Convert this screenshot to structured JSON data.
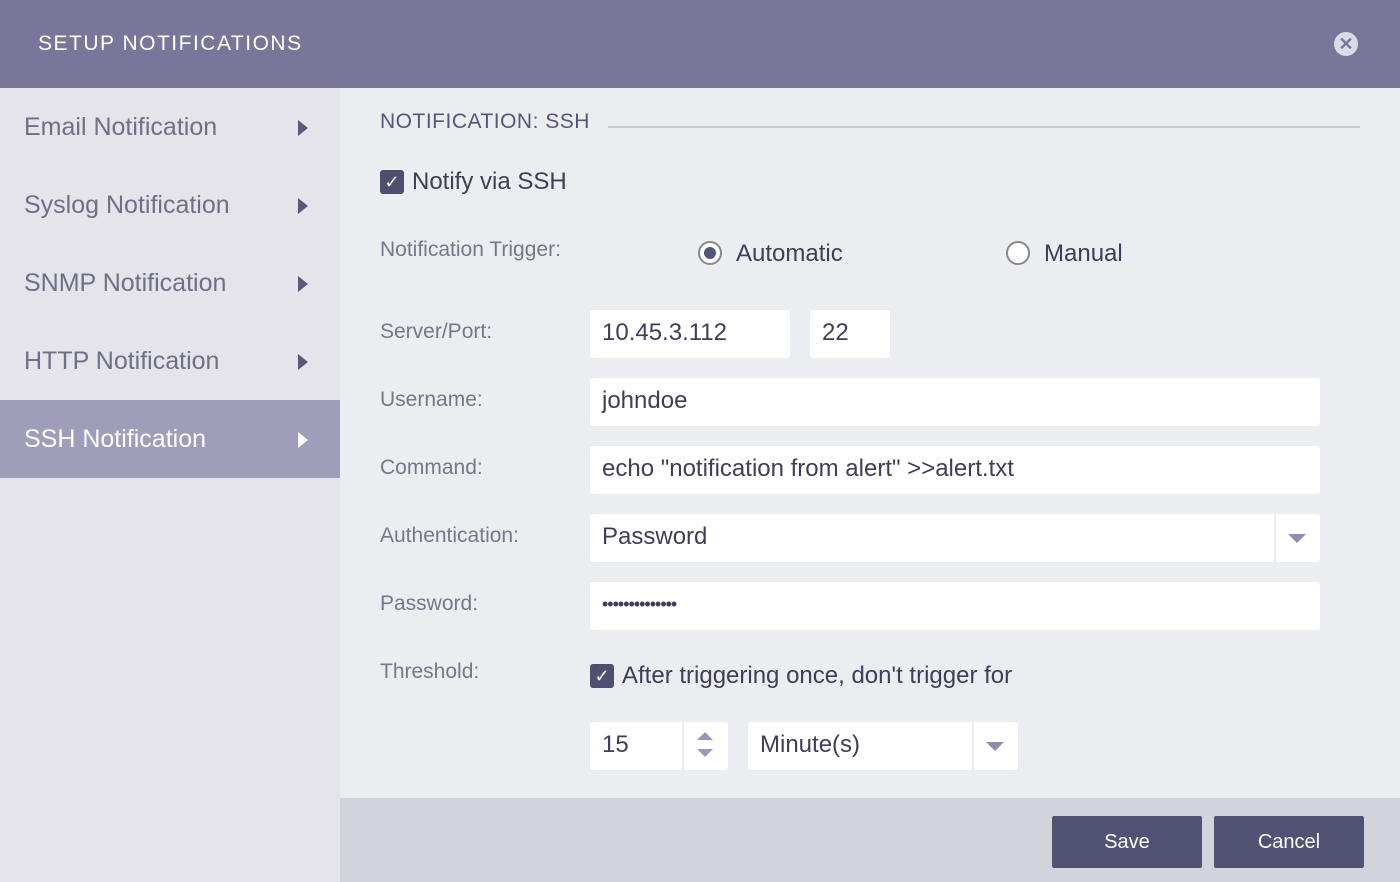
{
  "header": {
    "title": "SETUP NOTIFICATIONS",
    "close_icon": "close-circle-icon"
  },
  "sidebar": {
    "items": [
      {
        "label": "Email Notification"
      },
      {
        "label": "Syslog Notification"
      },
      {
        "label": "SNMP Notification"
      },
      {
        "label": "HTTP Notification"
      },
      {
        "label": "SSH Notification",
        "active": true
      }
    ]
  },
  "main": {
    "section_title": "NOTIFICATION: SSH",
    "notify_label": "Notify via SSH",
    "notify_checked": true,
    "trigger_label": "Notification Trigger:",
    "trigger_options": [
      "Automatic",
      "Manual"
    ],
    "trigger_selected": "Automatic",
    "server_label": "Server/Port:",
    "server": "10.45.3.112",
    "port": "22",
    "username_label": "Username:",
    "username": "johndoe",
    "command_label": "Command:",
    "command": "echo \"notification from alert\" >>alert.txt",
    "auth_label": "Authentication:",
    "auth": "Password",
    "password_label": "Password:",
    "password": "••••••••••••••",
    "threshold_label": "Threshold:",
    "threshold_check_label": "After triggering once, don't trigger for",
    "threshold_checked": true,
    "threshold_value": "15",
    "threshold_unit": "Minute(s)"
  },
  "footer": {
    "save": "Save",
    "cancel": "Cancel"
  }
}
